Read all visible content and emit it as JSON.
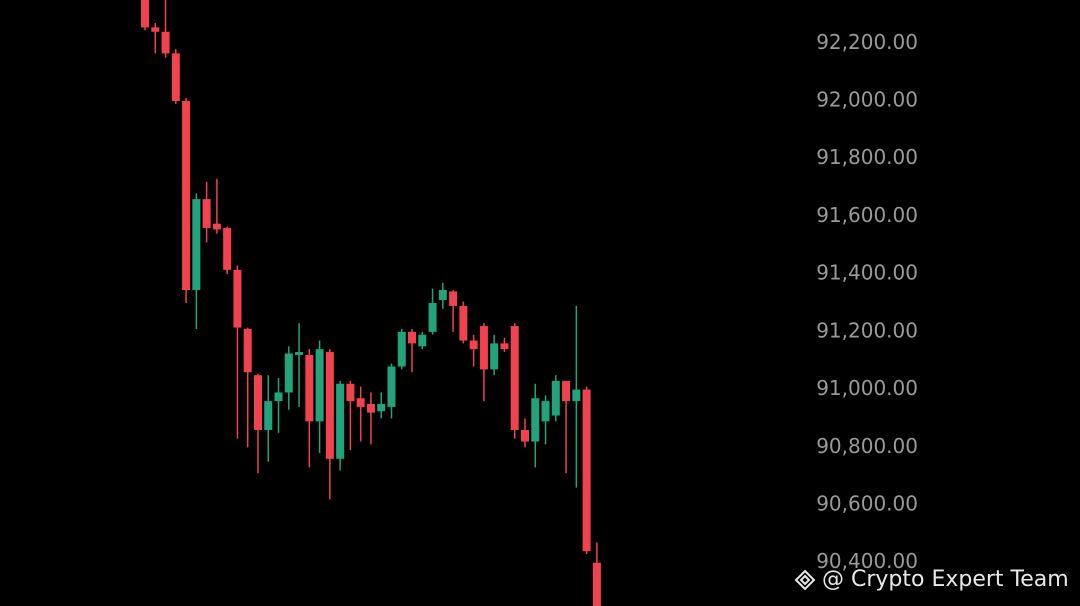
{
  "chart_data": {
    "type": "candlestick",
    "up_color": "#22a37c",
    "down_color": "#f0434f",
    "open": [
      92350,
      92255,
      92240,
      92165,
      92000,
      91345,
      91660,
      91575,
      91560,
      91415,
      91210,
      91050,
      90860,
      90960,
      90990,
      91120,
      91120,
      90890,
      91130,
      90760,
      91020,
      90970,
      90950,
      90925,
      90940,
      91080,
      91200,
      91150,
      91200,
      91310,
      91340,
      91290,
      91170,
      91220,
      91070,
      91160,
      91220,
      90860,
      90820,
      90890,
      90910,
      91030,
      90960,
      91000,
      90400
    ],
    "high": [
      92350,
      92270,
      92350,
      92180,
      92010,
      91680,
      91720,
      91730,
      91565,
      91430,
      91215,
      91055,
      91050,
      91040,
      91150,
      91230,
      91140,
      91170,
      91140,
      91030,
      91030,
      91010,
      90990,
      90990,
      91090,
      91210,
      91210,
      91200,
      91350,
      91370,
      91345,
      91305,
      91190,
      91230,
      91190,
      91180,
      91230,
      90900,
      91020,
      90980,
      91050,
      91030,
      91290,
      91010,
      90470
    ],
    "low": [
      92245,
      92165,
      92150,
      91990,
      91300,
      91210,
      91510,
      91540,
      91400,
      90830,
      90800,
      90710,
      90750,
      90850,
      90930,
      90940,
      90730,
      90780,
      90620,
      90720,
      90790,
      90820,
      90810,
      90900,
      90900,
      91070,
      91060,
      91140,
      91190,
      91280,
      91200,
      91160,
      91080,
      90960,
      91050,
      91130,
      90830,
      90800,
      90730,
      90810,
      90890,
      90710,
      90660,
      90430,
      90250
    ],
    "close": [
      92255,
      92240,
      92165,
      92000,
      91345,
      91660,
      91560,
      91555,
      91415,
      91215,
      91060,
      90860,
      90960,
      90990,
      91125,
      91130,
      90890,
      91140,
      90760,
      91020,
      90960,
      90940,
      90920,
      90950,
      91080,
      91200,
      91160,
      91190,
      91300,
      91345,
      91290,
      91170,
      91140,
      91070,
      91160,
      91140,
      90860,
      90820,
      90970,
      90960,
      91030,
      90960,
      91000,
      90440,
      90250
    ],
    "ylim": [
      90250,
      92350
    ],
    "yticks": [
      {
        "value": 90400,
        "label": "90,400.00"
      },
      {
        "value": 90600,
        "label": "90,600.00"
      },
      {
        "value": 90800,
        "label": "90,800.00"
      },
      {
        "value": 91000,
        "label": "91,000.00"
      },
      {
        "value": 91200,
        "label": "91,200.00"
      },
      {
        "value": 91400,
        "label": "91,400.00"
      },
      {
        "value": 91600,
        "label": "91,600.00"
      },
      {
        "value": 91800,
        "label": "91,800.00"
      },
      {
        "value": 92000,
        "label": "92,000.00"
      },
      {
        "value": 92200,
        "label": "92,200.00"
      }
    ],
    "watermark": "@ Crypto Expert Team"
  }
}
